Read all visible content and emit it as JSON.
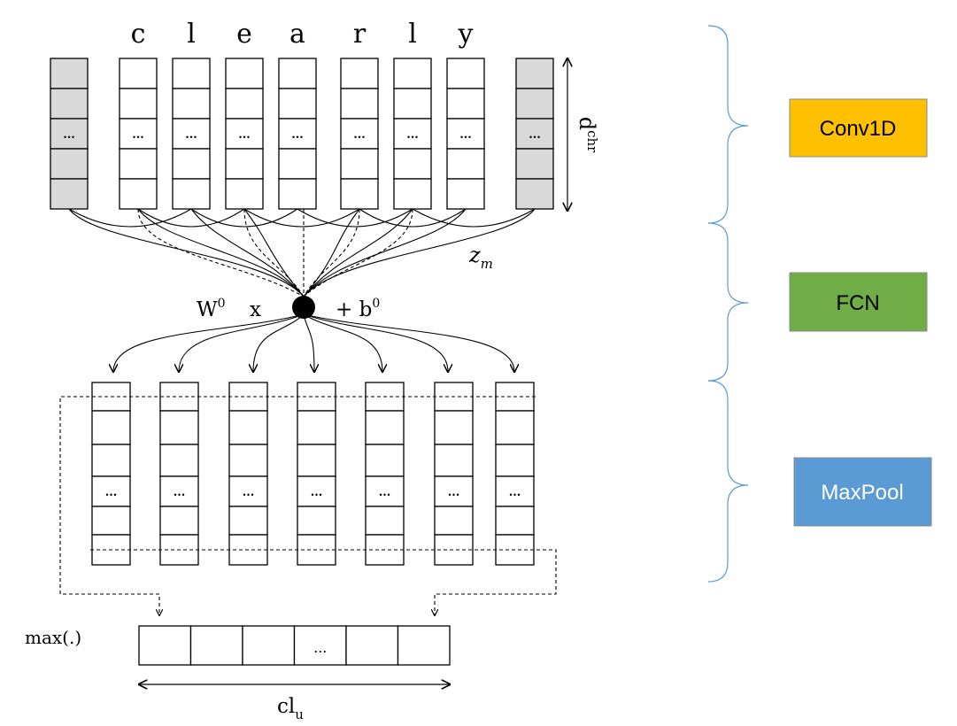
{
  "word_chars": [
    "c",
    "l",
    "e",
    "a",
    "r",
    "l",
    "y"
  ],
  "cell_ellipsis": "...",
  "dim_label_base": "d",
  "dim_label_sup": "chr",
  "z_label_base": "z",
  "z_label_sub": "m",
  "weight_base": "W",
  "weight_sup": "0",
  "x_label": "x",
  "bias_prefix": "+ b",
  "bias_sup": "0",
  "max_label": "max(.)",
  "out_label_base": "cl",
  "out_label_sub": "u",
  "stages": [
    {
      "label": "Conv1D",
      "color": "#ffc000"
    },
    {
      "label": "FCN",
      "color": "#70ad47"
    },
    {
      "label": "MaxPool",
      "color": "#5b9bd5"
    }
  ]
}
